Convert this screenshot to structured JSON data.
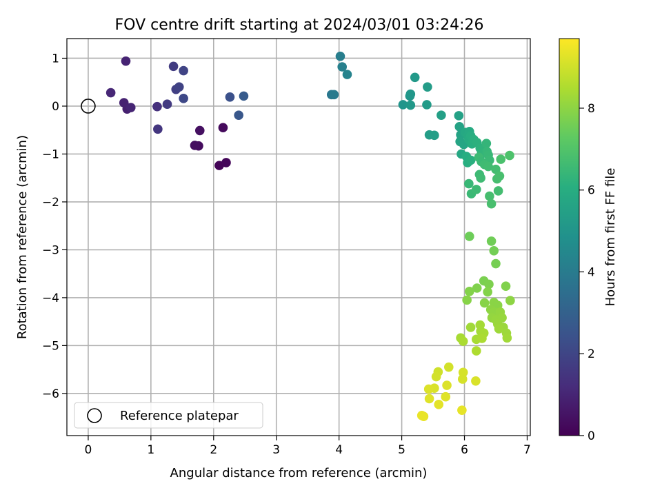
{
  "chart_data": {
    "type": "scatter",
    "title": "FOV centre drift starting at 2024/03/01 03:24:26",
    "xlabel": "Angular distance from reference (arcmin)",
    "ylabel": "Rotation from reference (arcmin)",
    "xlim": [
      -0.34,
      7.05
    ],
    "ylim": [
      -6.88,
      1.41
    ],
    "xticks": [
      0,
      1,
      2,
      3,
      4,
      5,
      6,
      7
    ],
    "yticks": [
      -6,
      -5,
      -4,
      -3,
      -2,
      -1,
      0,
      1
    ],
    "grid": true,
    "legend": {
      "placement": "lower-left",
      "entries": [
        "Reference platepar"
      ]
    },
    "colorbar": {
      "label": "Hours from first FF file",
      "range": [
        0,
        9.7
      ],
      "ticks": [
        0,
        2,
        4,
        6,
        8
      ],
      "colormap": "viridis"
    },
    "reference_point": {
      "x": 0,
      "y": 0,
      "label": "Reference platepar"
    },
    "series": [
      {
        "points": [
          [
            2.09,
            -1.24,
            0.1
          ],
          [
            2.2,
            -1.18,
            0.15
          ],
          [
            2.15,
            -0.45,
            0.25
          ],
          [
            1.76,
            -0.83,
            0.3
          ],
          [
            1.7,
            -0.82,
            0.35
          ],
          [
            1.78,
            -0.51,
            0.4
          ],
          [
            0.6,
            0.94,
            0.95
          ],
          [
            0.62,
            -0.06,
            0.85
          ],
          [
            0.57,
            0.07,
            0.9
          ],
          [
            0.68,
            -0.03,
            1.0
          ],
          [
            0.36,
            0.28,
            1.05
          ],
          [
            1.1,
            -0.01,
            1.35
          ],
          [
            1.11,
            -0.48,
            1.5
          ],
          [
            1.26,
            0.04,
            1.65
          ],
          [
            1.36,
            0.83,
            1.7
          ],
          [
            1.4,
            0.35,
            1.8
          ],
          [
            1.45,
            0.4,
            1.9
          ],
          [
            1.52,
            0.74,
            1.95
          ],
          [
            1.52,
            0.16,
            2.1
          ],
          [
            2.26,
            0.19,
            2.4
          ],
          [
            2.4,
            -0.19,
            2.6
          ],
          [
            2.48,
            0.21,
            2.75
          ],
          [
            3.88,
            0.24,
            3.85
          ],
          [
            3.92,
            0.24,
            3.95
          ],
          [
            4.02,
            1.04,
            4.1
          ],
          [
            4.05,
            0.82,
            4.2
          ],
          [
            4.13,
            0.66,
            4.3
          ],
          [
            5.02,
            0.03,
            5.0
          ],
          [
            5.13,
            0.21,
            5.05
          ],
          [
            5.14,
            0.25,
            5.1
          ],
          [
            5.14,
            0.02,
            5.15
          ],
          [
            5.21,
            0.6,
            5.2
          ],
          [
            5.4,
            0.03,
            5.25
          ],
          [
            5.41,
            0.4,
            5.3
          ],
          [
            5.44,
            -0.6,
            5.35
          ],
          [
            5.52,
            -0.61,
            5.4
          ],
          [
            5.63,
            -0.19,
            5.45
          ],
          [
            5.91,
            -0.2,
            5.5
          ],
          [
            5.92,
            -0.43,
            5.55
          ],
          [
            5.94,
            -0.6,
            5.6
          ],
          [
            5.93,
            -0.74,
            5.65
          ],
          [
            5.99,
            -0.8,
            5.7
          ],
          [
            5.95,
            -1.0,
            5.75
          ],
          [
            6.01,
            -0.55,
            5.8
          ],
          [
            6.05,
            -0.62,
            5.85
          ],
          [
            6.08,
            -0.53,
            5.9
          ],
          [
            6.07,
            -0.7,
            5.95
          ],
          [
            6.1,
            -0.62,
            6.0
          ],
          [
            6.12,
            -0.79,
            6.05
          ],
          [
            6.15,
            -0.7,
            6.1
          ],
          [
            6.03,
            -1.05,
            6.0
          ],
          [
            6.05,
            -1.18,
            6.05
          ],
          [
            6.1,
            -1.13,
            6.1
          ],
          [
            6.2,
            -0.76,
            6.15
          ],
          [
            6.25,
            -0.88,
            6.2
          ],
          [
            6.3,
            -0.9,
            6.25
          ],
          [
            6.27,
            -1.0,
            6.3
          ],
          [
            6.35,
            -0.78,
            6.35
          ],
          [
            6.36,
            -0.95,
            6.4
          ],
          [
            6.38,
            -1.02,
            6.45
          ],
          [
            6.4,
            -1.13,
            6.5
          ],
          [
            6.23,
            -1.07,
            6.55
          ],
          [
            6.27,
            -1.16,
            6.5
          ],
          [
            6.32,
            -1.22,
            6.6
          ],
          [
            6.38,
            -1.26,
            6.65
          ],
          [
            6.5,
            -1.32,
            6.7
          ],
          [
            6.52,
            -1.52,
            6.75
          ],
          [
            6.56,
            -1.46,
            6.8
          ],
          [
            6.58,
            -1.11,
            6.85
          ],
          [
            6.72,
            -1.03,
            6.9
          ],
          [
            6.24,
            -1.43,
            6.55
          ],
          [
            6.26,
            -1.5,
            6.6
          ],
          [
            6.07,
            -1.62,
            6.45
          ],
          [
            6.11,
            -1.83,
            6.5
          ],
          [
            6.19,
            -1.74,
            6.55
          ],
          [
            6.54,
            -1.77,
            6.7
          ],
          [
            6.4,
            -1.88,
            6.75
          ],
          [
            6.43,
            -2.04,
            6.8
          ],
          [
            6.08,
            -2.72,
            7.5
          ],
          [
            6.43,
            -2.82,
            7.55
          ],
          [
            6.47,
            -3.02,
            7.6
          ],
          [
            6.5,
            -3.29,
            7.65
          ],
          [
            6.31,
            -3.65,
            7.7
          ],
          [
            6.39,
            -3.72,
            7.75
          ],
          [
            6.2,
            -3.8,
            7.8
          ],
          [
            6.66,
            -3.76,
            7.8
          ],
          [
            6.08,
            -3.87,
            7.85
          ],
          [
            6.37,
            -3.88,
            7.85
          ],
          [
            6.04,
            -4.05,
            7.9
          ],
          [
            6.32,
            -4.11,
            7.9
          ],
          [
            6.47,
            -4.1,
            7.95
          ],
          [
            6.53,
            -4.16,
            7.95
          ],
          [
            6.73,
            -4.06,
            8.0
          ],
          [
            6.42,
            -4.25,
            8.0
          ],
          [
            6.47,
            -4.3,
            8.05
          ],
          [
            6.52,
            -4.35,
            8.05
          ],
          [
            6.57,
            -4.3,
            8.1
          ],
          [
            6.44,
            -4.42,
            8.1
          ],
          [
            6.5,
            -4.46,
            8.15
          ],
          [
            6.6,
            -4.42,
            8.15
          ],
          [
            6.53,
            -4.55,
            8.2
          ],
          [
            6.62,
            -4.62,
            8.2
          ],
          [
            6.55,
            -4.65,
            8.25
          ],
          [
            6.67,
            -4.74,
            8.25
          ],
          [
            6.68,
            -4.84,
            8.3
          ],
          [
            6.1,
            -4.62,
            8.3
          ],
          [
            6.25,
            -4.57,
            8.35
          ],
          [
            6.26,
            -4.7,
            8.35
          ],
          [
            6.31,
            -4.74,
            8.4
          ],
          [
            6.19,
            -4.87,
            8.4
          ],
          [
            6.28,
            -4.85,
            8.45
          ],
          [
            5.94,
            -4.84,
            8.4
          ],
          [
            5.98,
            -4.91,
            8.45
          ],
          [
            6.19,
            -5.11,
            8.5
          ],
          [
            5.58,
            -5.55,
            9.0
          ],
          [
            5.55,
            -5.65,
            9.05
          ],
          [
            5.75,
            -5.45,
            9.05
          ],
          [
            5.98,
            -5.56,
            9.1
          ],
          [
            5.97,
            -5.7,
            9.1
          ],
          [
            6.18,
            -5.74,
            9.15
          ],
          [
            5.52,
            -5.89,
            9.15
          ],
          [
            5.43,
            -5.91,
            9.2
          ],
          [
            5.72,
            -5.83,
            9.2
          ],
          [
            5.7,
            -6.07,
            9.25
          ],
          [
            5.44,
            -6.11,
            9.25
          ],
          [
            5.59,
            -6.23,
            9.3
          ],
          [
            5.96,
            -6.35,
            9.35
          ],
          [
            5.32,
            -6.46,
            9.4
          ],
          [
            5.35,
            -6.48,
            9.4
          ]
        ]
      }
    ]
  }
}
